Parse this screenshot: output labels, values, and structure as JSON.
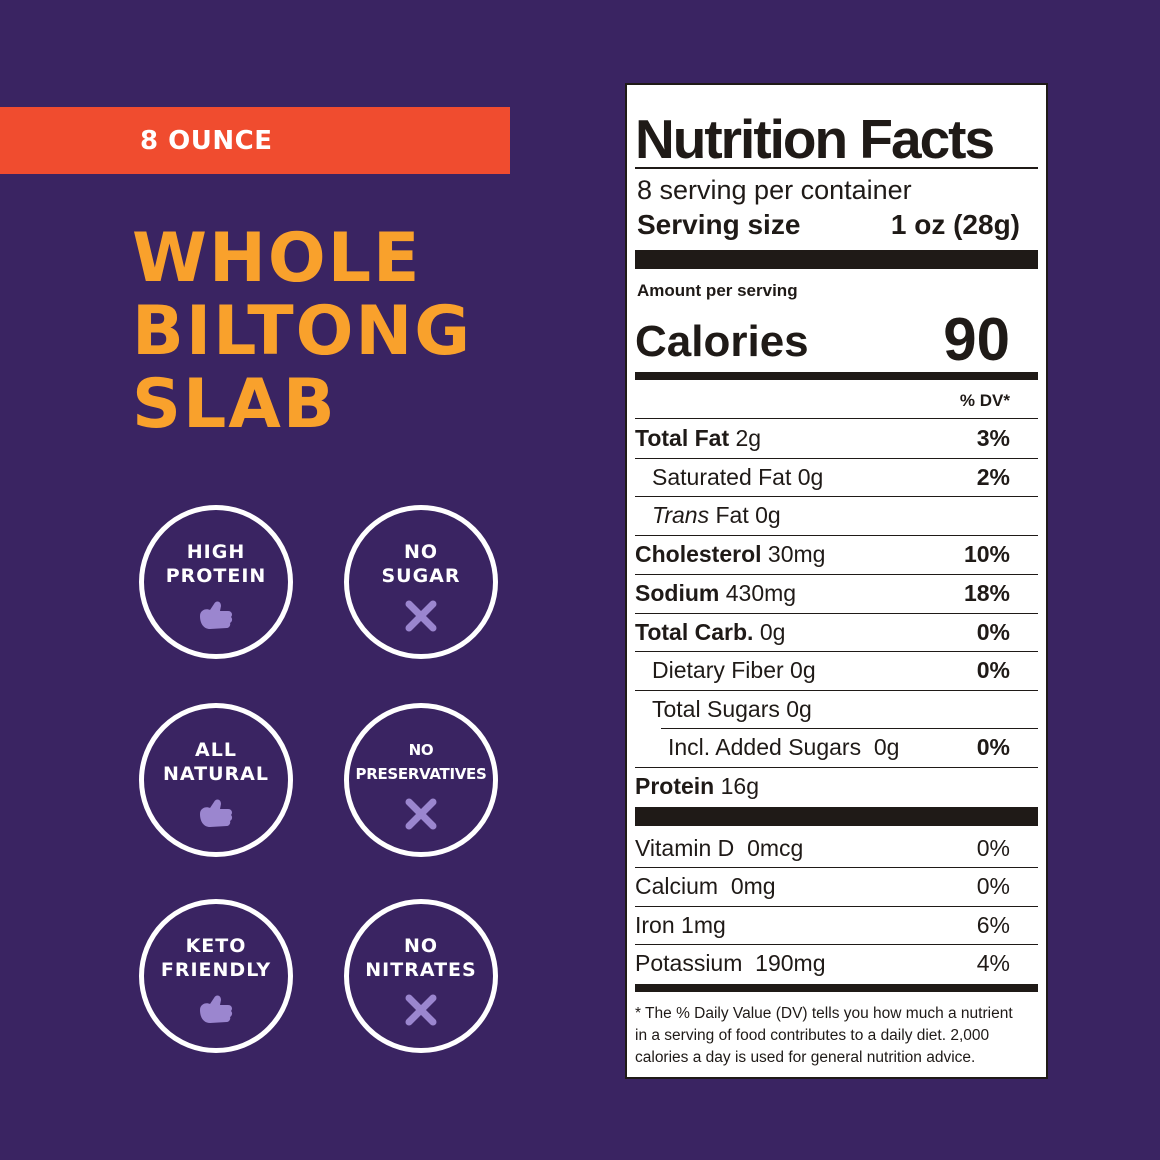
{
  "size_banner": {
    "label": "8 OUNCE"
  },
  "product_title": {
    "line1": "WHOLE",
    "line2": "BILTONG",
    "line3": "SLAB"
  },
  "badges": [
    {
      "label": "HIGH\nPROTEIN",
      "icon": "thumbs-up-icon"
    },
    {
      "label": "NO\nSUGAR",
      "icon": "x-icon"
    },
    {
      "label": "ALL\nNATURAL",
      "icon": "thumbs-up-icon"
    },
    {
      "label": "NO\nPRESERVATIVES",
      "icon": "x-icon"
    },
    {
      "label": "KETO\nFRIENDLY",
      "icon": "thumbs-up-icon"
    },
    {
      "label": "NO\nNITRATES",
      "icon": "x-icon"
    }
  ],
  "colors": {
    "background": "#3a2462",
    "banner": "#f04c2f",
    "title": "#f9a12c",
    "icon": "#9b86cf"
  },
  "nutrition": {
    "title": "Nutrition Facts",
    "servings": "8 serving per container",
    "serving_size_label": "Serving size",
    "serving_size_value": "1 oz (28g)",
    "amount_per_serving": "Amount per serving",
    "calories_label": "Calories",
    "calories_value": "90",
    "dv_header": "% DV*",
    "rows": [
      {
        "name": "Total Fat",
        "amount": "2g",
        "dv": "3%"
      },
      {
        "name": "Saturated Fat",
        "amount": "0g",
        "dv": "2%"
      },
      {
        "name": "Trans",
        "name_rest": "Fat",
        "amount": "0g",
        "dv": ""
      },
      {
        "name": "Cholesterol",
        "amount": "30mg",
        "dv": "10%"
      },
      {
        "name": "Sodium",
        "amount": "430mg",
        "dv": "18%"
      },
      {
        "name": "Total Carb.",
        "amount": "0g",
        "dv": "0%"
      },
      {
        "name": "Dietary Fiber",
        "amount": "0g",
        "dv": "0%"
      },
      {
        "name": "Total Sugars",
        "amount": "0g",
        "dv": ""
      },
      {
        "name": "Incl. Added Sugars",
        "amount": "0g",
        "dv": "0%"
      },
      {
        "name": "Protein",
        "amount": "16g",
        "dv": ""
      }
    ],
    "vitamins": [
      {
        "name": "Vitamin D",
        "amount": "0mcg",
        "dv": "0%"
      },
      {
        "name": "Calcium",
        "amount": "0mg",
        "dv": "0%"
      },
      {
        "name": "Iron",
        "amount": "1mg",
        "dv": "6%"
      },
      {
        "name": "Potassium",
        "amount": "190mg",
        "dv": "4%"
      }
    ],
    "footnote": "* The % Daily Value (DV) tells you how much a nutrient in a serving of food contributes to a daily diet. 2,000 calories a day is used for general nutrition advice."
  }
}
